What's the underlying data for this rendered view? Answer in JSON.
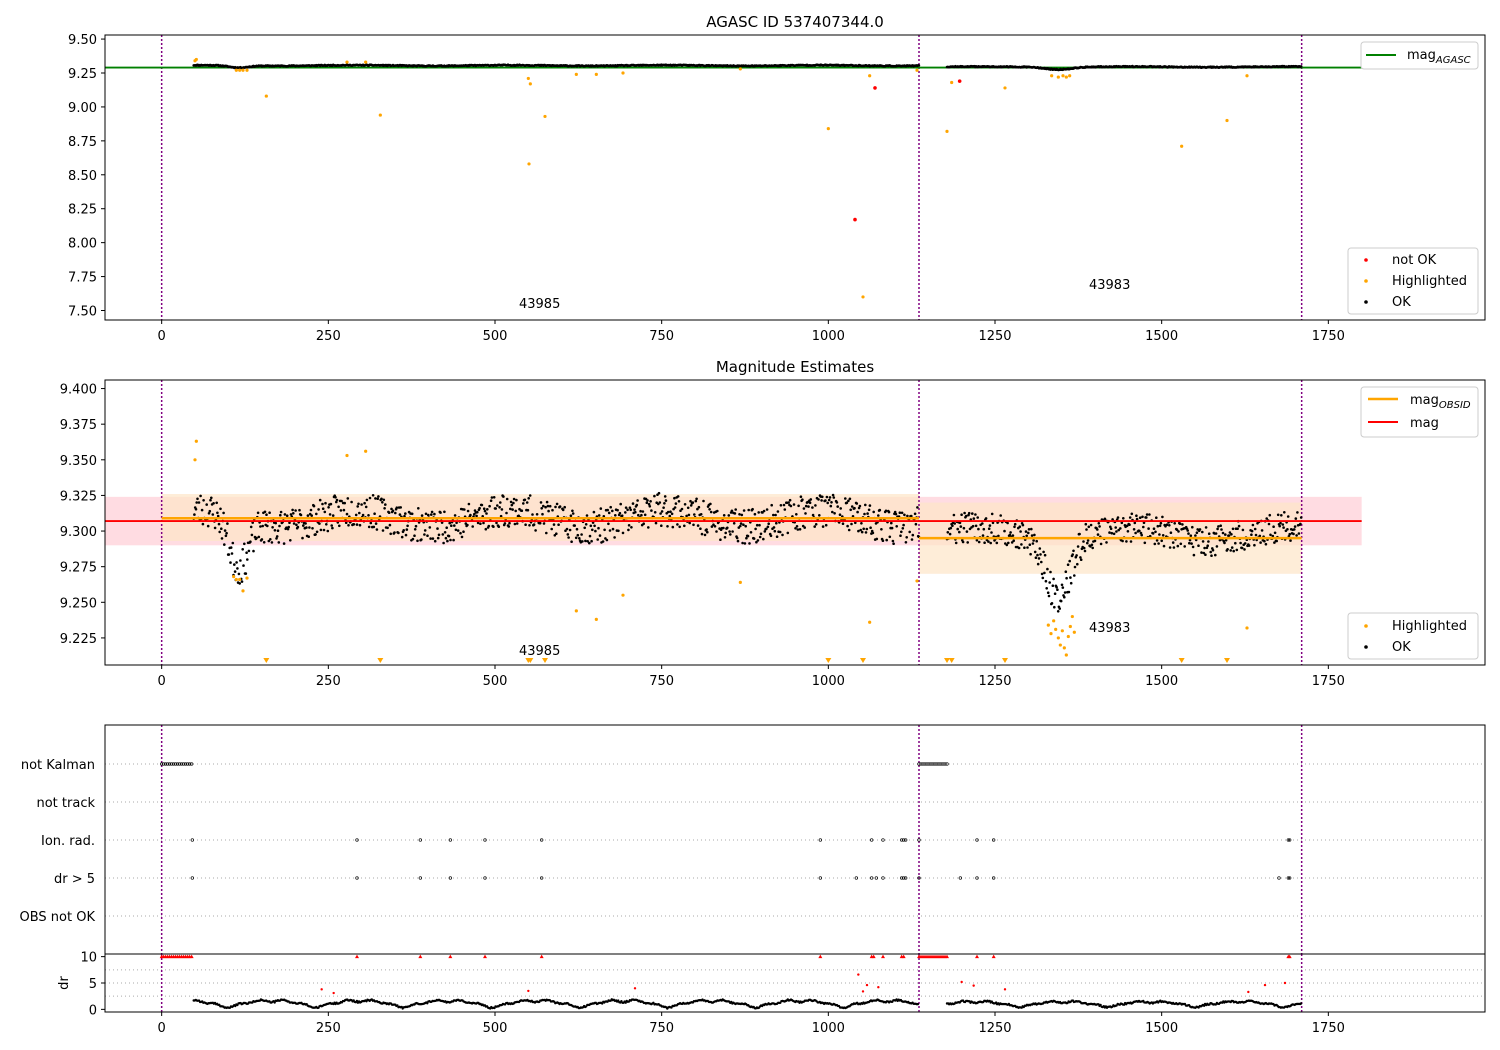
{
  "figure": {
    "background": "#ffffff"
  },
  "colors": {
    "ok": "#000000",
    "highlighted": "#ffa500",
    "not_ok": "#ff0000",
    "agasc_line": "#008000",
    "obsid_line": "#ffa500",
    "mag_line": "#ff0000",
    "obs_divider": "#800080",
    "mag_band": "#ffc0cb",
    "obsid_band": "#fde6c8"
  },
  "chart_data": [
    {
      "id": "agasc",
      "type": "scatter",
      "title": "AGASC ID 537407344.0",
      "xlabel": "",
      "ylabel": "",
      "xlim": [
        -85,
        1985
      ],
      "ylim": [
        7.43,
        9.53
      ],
      "xticks": [
        0,
        250,
        500,
        750,
        1000,
        1250,
        1500,
        1750
      ],
      "yticks": [
        7.5,
        7.75,
        8.0,
        8.25,
        8.5,
        8.75,
        9.0,
        9.25,
        9.5
      ],
      "legend_top": {
        "position": "upper right",
        "entries": [
          {
            "label": "mag",
            "sub": "AGASC",
            "color": "#008000",
            "kind": "line"
          }
        ]
      },
      "legend_bottom": {
        "position": "lower right",
        "entries": [
          {
            "label": "not OK",
            "color": "#ff0000",
            "kind": "dot"
          },
          {
            "label": "Highlighted",
            "color": "#ffa500",
            "kind": "dot"
          },
          {
            "label": "OK",
            "color": "#000000",
            "kind": "dot"
          }
        ]
      },
      "obs_boundaries": [
        0,
        1136,
        1710
      ],
      "obs_labels": [
        {
          "text": "43985",
          "x": 567,
          "y": 7.52
        },
        {
          "text": "43983",
          "x": 1422,
          "y": 7.66
        }
      ],
      "mag_agasc": {
        "value": 9.29,
        "x": [
          -85,
          1800
        ]
      },
      "ok_segments": [
        {
          "x": [
            48,
            1136
          ],
          "base": 9.305,
          "noise": 0.008,
          "wave": 0.01,
          "dip": {
            "at": 115,
            "depth": 0.035,
            "width": 20
          }
        },
        {
          "x": [
            1178,
            1710
          ],
          "base": 9.295,
          "noise": 0.008,
          "wave": 0.008,
          "dip": {
            "at": 1345,
            "depth": 0.04,
            "width": 25
          }
        }
      ],
      "highlighted_points": [
        [
          50,
          9.34
        ],
        [
          52,
          9.35
        ],
        [
          112,
          9.27
        ],
        [
          117,
          9.27
        ],
        [
          122,
          9.27
        ],
        [
          128,
          9.27
        ],
        [
          157,
          9.08
        ],
        [
          278,
          9.33
        ],
        [
          306,
          9.33
        ],
        [
          328,
          8.94
        ],
        [
          550,
          9.21
        ],
        [
          551,
          8.58
        ],
        [
          553,
          9.17
        ],
        [
          575,
          8.93
        ],
        [
          622,
          9.24
        ],
        [
          652,
          9.24
        ],
        [
          692,
          9.25
        ],
        [
          868,
          9.28
        ],
        [
          1000,
          8.84
        ],
        [
          1052,
          7.6
        ],
        [
          1062,
          9.23
        ],
        [
          1133,
          9.27
        ],
        [
          1178,
          8.82
        ],
        [
          1185,
          9.18
        ],
        [
          1265,
          9.14
        ],
        [
          1335,
          9.23
        ],
        [
          1345,
          9.22
        ],
        [
          1352,
          9.23
        ],
        [
          1357,
          9.22
        ],
        [
          1362,
          9.23
        ],
        [
          1530,
          8.71
        ],
        [
          1598,
          8.9
        ],
        [
          1628,
          9.23
        ]
      ],
      "not_ok_points": [
        [
          1040,
          8.17
        ],
        [
          1070,
          9.14
        ],
        [
          1197,
          9.19
        ]
      ]
    },
    {
      "id": "estimates",
      "type": "scatter",
      "title": "Magnitude Estimates",
      "xlabel": "",
      "ylabel": "",
      "xlim": [
        -85,
        1985
      ],
      "ylim": [
        9.206,
        9.406
      ],
      "xticks": [
        0,
        250,
        500,
        750,
        1000,
        1250,
        1500,
        1750
      ],
      "yticks": [
        9.225,
        9.25,
        9.275,
        9.3,
        9.325,
        9.35,
        9.375,
        9.4
      ],
      "legend_top": {
        "position": "upper right",
        "entries": [
          {
            "label": "mag",
            "sub": "OBSID",
            "color": "#ffa500",
            "kind": "line"
          },
          {
            "label": "mag",
            "sub": "",
            "color": "#ff0000",
            "kind": "line"
          }
        ]
      },
      "legend_bottom": {
        "position": "lower right",
        "entries": [
          {
            "label": "Highlighted",
            "color": "#ffa500",
            "kind": "dot"
          },
          {
            "label": "OK",
            "color": "#000000",
            "kind": "dot"
          }
        ]
      },
      "obs_boundaries": [
        0,
        1136,
        1710
      ],
      "obs_labels": [
        {
          "text": "43985",
          "x": 567,
          "y": 9.213
        },
        {
          "text": "43983",
          "x": 1422,
          "y": 9.229
        }
      ],
      "mag": {
        "value": 9.307,
        "band": [
          9.29,
          9.324
        ],
        "x": [
          -85,
          1800
        ]
      },
      "mag_obsid": [
        {
          "x": [
            0,
            1136
          ],
          "value": 9.309,
          "band": [
            9.293,
            9.326
          ]
        },
        {
          "x": [
            1136,
            1710
          ],
          "value": 9.295,
          "band": [
            9.27,
            9.32
          ]
        }
      ],
      "ok_segments": [
        {
          "x": [
            48,
            1136
          ],
          "base": 9.309,
          "noise": 0.012,
          "wave": 0.01,
          "dip": {
            "at": 115,
            "depth": 0.035,
            "width": 20
          }
        },
        {
          "x": [
            1178,
            1710
          ],
          "base": 9.298,
          "noise": 0.011,
          "wave": 0.008,
          "dip": {
            "at": 1345,
            "depth": 0.04,
            "width": 25
          }
        }
      ],
      "highlighted_points": [
        [
          50,
          9.35
        ],
        [
          52,
          9.363
        ],
        [
          108,
          9.268
        ],
        [
          112,
          9.266
        ],
        [
          117,
          9.266
        ],
        [
          122,
          9.258
        ],
        [
          128,
          9.267
        ],
        [
          278,
          9.353
        ],
        [
          306,
          9.356
        ],
        [
          622,
          9.244
        ],
        [
          652,
          9.238
        ],
        [
          692,
          9.255
        ],
        [
          868,
          9.264
        ],
        [
          1062,
          9.236
        ],
        [
          1133,
          9.265
        ],
        [
          1330,
          9.234
        ],
        [
          1334,
          9.228
        ],
        [
          1338,
          9.237
        ],
        [
          1341,
          9.231
        ],
        [
          1345,
          9.225
        ],
        [
          1348,
          9.22
        ],
        [
          1351,
          9.23
        ],
        [
          1354,
          9.218
        ],
        [
          1357,
          9.213
        ],
        [
          1360,
          9.226
        ],
        [
          1363,
          9.233
        ],
        [
          1366,
          9.24
        ],
        [
          1369,
          9.229
        ],
        [
          1628,
          9.232
        ]
      ],
      "below_axis_markers": [
        157,
        328,
        550,
        553,
        575,
        1000,
        1052,
        1178,
        1185,
        1265,
        1530,
        1598
      ]
    },
    {
      "id": "flags",
      "type": "scatter",
      "title": "",
      "xlim": [
        -85,
        1985
      ],
      "xticks": [
        0,
        250,
        500,
        750,
        1000,
        1250,
        1500,
        1750
      ],
      "categories": [
        "not Kalman",
        "not track",
        "Ion. rad.",
        "dr > 5",
        "OBS not OK"
      ],
      "obs_boundaries": [
        0,
        1136,
        1710
      ],
      "not_kalman_ranges": [
        [
          0,
          45
        ],
        [
          1136,
          1178
        ]
      ],
      "ion_rad_points": [
        46,
        293,
        388,
        433,
        485,
        570,
        988,
        1065,
        1082,
        1110,
        1113,
        1116,
        1223,
        1248,
        1690,
        1692
      ],
      "dr5_points": [
        46,
        293,
        388,
        433,
        485,
        570,
        988,
        1042,
        1065,
        1072,
        1082,
        1110,
        1113,
        1116,
        1198,
        1223,
        1248,
        1676,
        1690,
        1692
      ]
    },
    {
      "id": "dr",
      "type": "scatter",
      "title": "",
      "ylabel": "dr",
      "xlim": [
        -85,
        1985
      ],
      "ylim": [
        -0.5,
        10.5
      ],
      "xticks": [
        0,
        250,
        500,
        750,
        1000,
        1250,
        1500,
        1750
      ],
      "yticks": [
        0,
        5,
        10
      ],
      "obs_boundaries": [
        0,
        1136,
        1710
      ],
      "clipped_ranges": [
        [
          0,
          45
        ],
        [
          1136,
          1178
        ]
      ],
      "clipped_points": [
        293,
        388,
        433,
        485,
        570,
        988,
        1065,
        1068,
        1082,
        1110,
        1113,
        1223,
        1248,
        1690,
        1692
      ],
      "red_points": [
        [
          240,
          3.8
        ],
        [
          258,
          3.1
        ],
        [
          550,
          3.5
        ],
        [
          710,
          4.0
        ],
        [
          1045,
          6.6
        ],
        [
          1052,
          3.4
        ],
        [
          1058,
          4.6
        ],
        [
          1075,
          4.2
        ],
        [
          1200,
          5.2
        ],
        [
          1218,
          4.5
        ],
        [
          1265,
          3.8
        ],
        [
          1630,
          3.3
        ],
        [
          1655,
          4.6
        ],
        [
          1685,
          5.0
        ]
      ],
      "ok_segments": [
        {
          "x": [
            48,
            1136
          ],
          "base": 1.2,
          "amp": 0.9
        },
        {
          "x": [
            1178,
            1710
          ],
          "base": 1.1,
          "amp": 0.7
        }
      ]
    }
  ]
}
